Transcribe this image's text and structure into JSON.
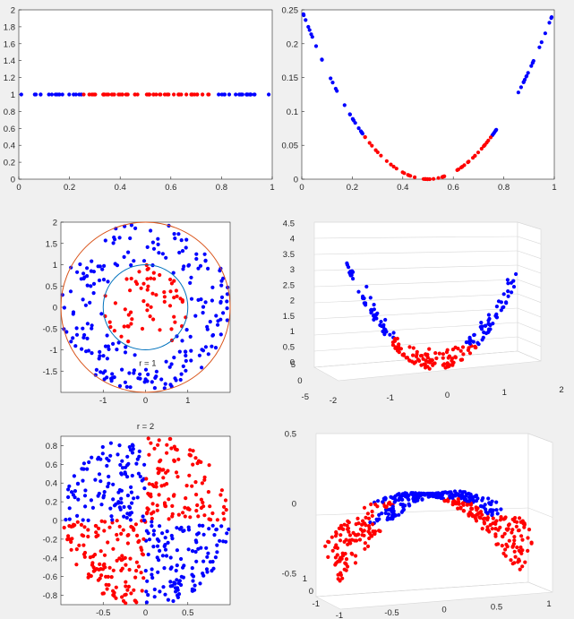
{
  "colors": {
    "blue": "#0000ff",
    "red": "#ff0000",
    "circle_outer": "#d95319",
    "circle_inner": "#0072bd",
    "axis": "#262626",
    "grid": "#d7d7d7",
    "background": "#f0f0f0"
  },
  "chart_data": [
    {
      "id": "p1",
      "type": "scatter",
      "title": "",
      "xlim": [
        0,
        1
      ],
      "ylim": [
        0,
        2
      ],
      "xticks": [
        "0",
        "0.2",
        "0.4",
        "0.6",
        "0.8",
        "1"
      ],
      "yticks": [
        "0",
        "0.2",
        "0.4",
        "0.6",
        "0.8",
        "1",
        "1.2",
        "1.4",
        "1.6",
        "1.8",
        "2"
      ],
      "series": [
        {
          "color": "blue",
          "rule": "x < 0.25 or x > 0.75",
          "y": 1
        },
        {
          "color": "red",
          "rule": "0.25 <= x <= 0.75",
          "y": 1
        }
      ],
      "approx_points": 100
    },
    {
      "id": "p2",
      "type": "scatter",
      "title": "",
      "xlim": [
        0,
        1
      ],
      "ylim": [
        0,
        0.25
      ],
      "xticks": [
        "0",
        "0.2",
        "0.4",
        "0.6",
        "0.8",
        "1"
      ],
      "yticks": [
        "0",
        "0.05",
        "0.1",
        "0.15",
        "0.2",
        "0.25"
      ],
      "relation": "y = (x - 0.5)^2",
      "series": [
        {
          "color": "blue"
        },
        {
          "color": "red"
        }
      ],
      "approx_points": 100
    },
    {
      "id": "p3",
      "type": "scatter",
      "title": "",
      "xlim": [
        -2,
        2
      ],
      "ylim": [
        -2,
        2
      ],
      "xticks": [
        "-1",
        "0",
        "1"
      ],
      "yticks": [
        "-1.5",
        "-1",
        "-0.5",
        "0",
        "0.5",
        "1",
        "1.5",
        "2"
      ],
      "circles": [
        {
          "r": 2,
          "color": "circle_outer"
        },
        {
          "r": 1,
          "color": "circle_inner"
        }
      ],
      "annotation": "r = 1",
      "series": [
        {
          "color": "red",
          "rule": "r <= 1"
        },
        {
          "color": "blue",
          "rule": "1 < r <= 2"
        }
      ],
      "approx_points": 280
    },
    {
      "id": "p4",
      "type": "scatter3d",
      "title": "",
      "xlim": [
        -2,
        2
      ],
      "ylim": [
        -5,
        5
      ],
      "zlim": [
        0,
        4.5
      ],
      "xticks": [
        "-2",
        "-1",
        "0",
        "1",
        "2"
      ],
      "yticks": [
        "-5",
        "0",
        "5"
      ],
      "zticks": [
        "0",
        "0.5",
        "1",
        "1.5",
        "2",
        "2.5",
        "3",
        "3.5",
        "4",
        "4.5"
      ],
      "relation": "z = x^2 + y^2",
      "series": [
        {
          "color": "blue"
        },
        {
          "color": "red"
        }
      ],
      "approx_points": 200
    },
    {
      "id": "p5",
      "type": "scatter",
      "title": "r = 2",
      "xlim": [
        -1,
        1
      ],
      "ylim": [
        -0.9,
        0.9
      ],
      "xticks": [
        "-0.5",
        "0",
        "0.5"
      ],
      "yticks": [
        "-0.8",
        "-0.6",
        "-0.4",
        "-0.2",
        "0",
        "0.2",
        "0.4",
        "0.6",
        "0.8"
      ],
      "series": [
        {
          "color": "blue",
          "rule": "checkerboard quadrants"
        },
        {
          "color": "red",
          "rule": "checkerboard quadrants"
        }
      ],
      "approx_points": 500
    },
    {
      "id": "p6",
      "type": "scatter3d",
      "title": "",
      "xlim": [
        -1,
        1
      ],
      "ylim": [
        -1,
        1
      ],
      "zlim": [
        -0.5,
        0.5
      ],
      "xticks": [
        "-1",
        "-0.5",
        "0",
        "0.5",
        "1"
      ],
      "yticks": [
        "-1",
        "0",
        "1"
      ],
      "zticks": [
        "-0.5",
        "0",
        "0.5"
      ],
      "relation": "z = x * y",
      "series": [
        {
          "color": "blue"
        },
        {
          "color": "red"
        }
      ],
      "approx_points": 500
    }
  ]
}
